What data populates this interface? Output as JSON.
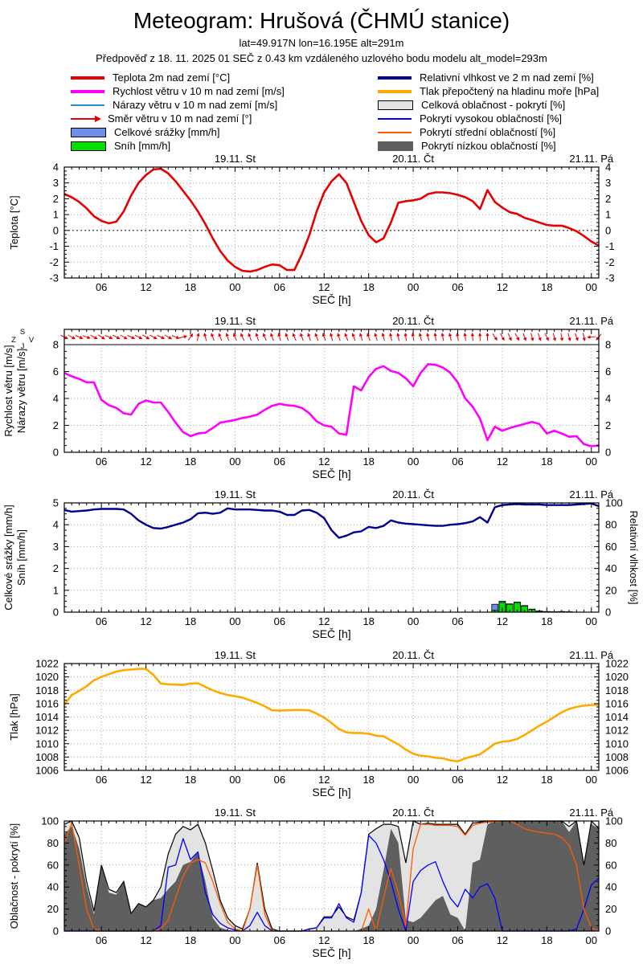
{
  "header": {
    "title": "Meteogram: Hrušová (ČHMÚ stanice)",
    "subtitle": "lat=49.917N lon=16.195E alt=291m",
    "forecast_info": "Předpověď z 18. 11. 2025 01 SEČ z 0.43 km vzdáleného uzlového bodu modelu alt_model=293m"
  },
  "legend": {
    "left": [
      {
        "label": "Teplota 2m nad zemí [°C]",
        "color": "#e60000",
        "type": "line-thick"
      },
      {
        "label": "Rychlost větru v 10 m nad zemí [m/s]",
        "color": "#ff00ff",
        "type": "line-thick"
      },
      {
        "label": "Nárazy větru v 10 m nad zemí [m/s]",
        "color": "#2090d0",
        "type": "line-thin"
      },
      {
        "label": "Směr větru v 10 m nad zemí [°]",
        "color": "#e60000",
        "type": "arrow"
      },
      {
        "label": "Celkové srážky [mm/h]",
        "color": "#6d8fe8",
        "type": "box"
      },
      {
        "label": "Sníh [mm/h]",
        "color": "#00e000",
        "type": "box"
      }
    ],
    "right": [
      {
        "label": "Relativní vlhkost ve 2 m nad zemí [%]",
        "color": "#000090",
        "type": "line-thick"
      },
      {
        "label": "Tlak přepočtený na hladinu moře [hPa]",
        "color": "#ffaa00",
        "type": "line-thick"
      },
      {
        "label": "Celková oblačnost - pokrytí [%]",
        "color": "#e3e3e3",
        "type": "box-outline"
      },
      {
        "label": "Pokrytí vysokou oblačností [%]",
        "color": "#0000ff",
        "type": "line-thin"
      },
      {
        "label": "Pokrytí střední oblačností [%]",
        "color": "#ff5a00",
        "type": "line-thin"
      },
      {
        "label": "Pokrytí nízkou oblačností [%]",
        "color": "#5f5f5f",
        "type": "box-filled"
      }
    ]
  },
  "axis": {
    "x_start": "18.11. 01:00 SEČ",
    "x_hours_span": 72,
    "x_major_hours": [
      5,
      11,
      17,
      23,
      29,
      35,
      41,
      47,
      53,
      59,
      65,
      71
    ],
    "x_tick_labels": [
      "06",
      "12",
      "18",
      "00",
      "06",
      "12",
      "18",
      "00",
      "06",
      "12",
      "18",
      "00"
    ],
    "x_label": "SEČ [h]",
    "day_labels": [
      {
        "text": "19.11. St",
        "hour": 23
      },
      {
        "text": "20.11. Čt",
        "hour": 47
      },
      {
        "text": "21.11. Pá",
        "hour": 71
      }
    ]
  },
  "chart_data": [
    {
      "type": "line",
      "name": "temperature",
      "ylabel": "Teplota [°C]",
      "ylim": [
        -3,
        4
      ],
      "ytick": 1,
      "yminor": 0.25,
      "zero_line": true,
      "series": [
        {
          "name": "Teplota 2m nad zemí [°C]",
          "color": "#e60000",
          "width": 2.6,
          "values": [
            2.3,
            2.1,
            1.8,
            1.4,
            0.9,
            0.6,
            0.45,
            0.55,
            1.2,
            2.2,
            3.0,
            3.5,
            3.85,
            3.9,
            3.6,
            3.1,
            2.5,
            1.9,
            1.2,
            0.4,
            -0.5,
            -1.3,
            -1.9,
            -2.3,
            -2.55,
            -2.6,
            -2.5,
            -2.3,
            -2.15,
            -2.2,
            -2.5,
            -2.5,
            -1.5,
            -0.3,
            1.2,
            2.4,
            3.1,
            3.55,
            3.0,
            1.8,
            0.6,
            -0.3,
            -0.75,
            -0.5,
            0.5,
            1.75,
            1.85,
            1.9,
            2.0,
            2.3,
            2.4,
            2.4,
            2.35,
            2.25,
            2.1,
            1.85,
            1.35,
            2.55,
            1.8,
            1.45,
            1.15,
            1.05,
            0.8,
            0.65,
            0.5,
            0.35,
            0.3,
            0.3,
            0.15,
            -0.05,
            -0.35,
            -0.7,
            -0.95
          ]
        }
      ]
    },
    {
      "type": "line",
      "name": "wind",
      "ylabel": [
        "Rychlost větru [m/s]",
        "Nárazy větru [m/s]"
      ],
      "ylim": [
        0,
        8
      ],
      "ytick": 2,
      "yminor": 0.5,
      "top_strip": true,
      "compass": {
        "north": "S",
        "east": "V",
        "south": "J",
        "west": "Z"
      },
      "arrows": {
        "name": "Směr větru v 10 m nad zemí [°]",
        "color": "#e60000",
        "angles_deg": [
          -25,
          -30,
          -25,
          -20,
          -28,
          -32,
          -25,
          -28,
          -30,
          -25,
          -28,
          -32,
          -28,
          -25,
          -30,
          -22,
          15,
          55,
          80,
          105,
          110,
          112,
          108,
          112,
          115,
          110,
          108,
          112,
          110,
          106,
          110,
          114,
          110,
          108,
          112,
          110,
          105,
          108,
          112,
          110,
          107,
          110,
          108,
          105,
          102,
          100,
          98,
          100,
          105,
          102,
          98,
          100,
          103,
          100,
          97,
          95,
          92,
          90,
          -55,
          -60,
          -65,
          -60,
          -70,
          -75,
          -70,
          -65,
          -75,
          -80,
          -75,
          -70,
          -78,
          185,
          -130
        ]
      },
      "series": [
        {
          "name": "Nárazy větru v 10 m nad zemí [m/s]",
          "color": "#2090d0",
          "width": 1,
          "values": "same_as_next"
        },
        {
          "name": "Rychlost větru v 10 m nad zemí [m/s]",
          "color": "#ff00ff",
          "width": 2.6,
          "values": [
            5.9,
            5.65,
            5.45,
            5.2,
            5.2,
            3.9,
            3.5,
            3.3,
            2.9,
            2.8,
            3.6,
            3.85,
            3.7,
            3.7,
            3.0,
            2.2,
            1.5,
            1.2,
            1.4,
            1.45,
            1.8,
            2.2,
            2.3,
            2.4,
            2.55,
            2.65,
            2.8,
            3.15,
            3.45,
            3.6,
            3.5,
            3.45,
            3.3,
            2.9,
            2.3,
            2.0,
            1.9,
            1.4,
            1.3,
            4.9,
            4.6,
            5.6,
            6.2,
            6.4,
            6.05,
            5.9,
            5.5,
            4.9,
            5.9,
            6.55,
            6.5,
            6.3,
            5.9,
            5.2,
            4.0,
            3.4,
            2.5,
            0.9,
            1.9,
            1.6,
            1.8,
            1.95,
            2.1,
            2.25,
            2.1,
            1.4,
            1.6,
            1.4,
            1.15,
            1.2,
            0.6,
            0.45,
            0.5
          ]
        }
      ]
    },
    {
      "type": "bars+line",
      "name": "precipitation-humidity",
      "ylabel": [
        "Celkové srážky [mm/h]",
        "Sníh [mm/h]"
      ],
      "ylim": [
        0,
        5
      ],
      "ytick": 1,
      "yminor": 0.25,
      "y2label": "Relativní vlhkost [%]",
      "y2lim": [
        0,
        100
      ],
      "y2tick": 20,
      "bars": {
        "total_name": "Celkové srážky [mm/h]",
        "total_color": "#6d8fe8",
        "snow_name": "Sníh [mm/h]",
        "snow_color": "#00e000",
        "values": [
          {
            "hour": 58,
            "total": 0.36,
            "snow": 0.08
          },
          {
            "hour": 59,
            "total": 0.5,
            "snow": 0.44
          },
          {
            "hour": 60,
            "total": 0.38,
            "snow": 0.36
          },
          {
            "hour": 61,
            "total": 0.46,
            "snow": 0.44
          },
          {
            "hour": 62,
            "total": 0.3,
            "snow": 0.28
          },
          {
            "hour": 63,
            "total": 0.14,
            "snow": 0.12
          },
          {
            "hour": 64,
            "total": 0.05,
            "snow": 0.04
          },
          {
            "hour": 65,
            "total": 0.03,
            "snow": 0.02
          },
          {
            "hour": 66,
            "total": 0.02,
            "snow": 0.02
          },
          {
            "hour": 67,
            "total": 0.03,
            "snow": 0.02
          },
          {
            "hour": 68,
            "total": 0.02,
            "snow": 0.01
          }
        ]
      },
      "series2": [
        {
          "name": "Relativní vlhkost ve 2 m nad zemí [%]",
          "color": "#000090",
          "width": 2.4,
          "values": [
            93.5,
            92,
            92.5,
            93,
            94,
            94.5,
            94.5,
            94.5,
            94,
            90,
            84,
            80,
            77,
            76.5,
            78,
            80,
            82,
            85,
            90.5,
            91,
            90,
            91,
            95,
            94,
            94,
            94,
            93.5,
            93,
            93,
            92,
            89,
            89,
            93,
            93.5,
            91,
            86,
            75,
            68,
            70,
            73,
            74,
            78,
            77,
            79,
            84,
            82,
            81,
            80.5,
            80,
            79.5,
            79,
            79,
            80,
            80.5,
            81.5,
            83,
            87,
            82,
            96,
            98,
            98.5,
            99,
            98.5,
            98.5,
            98.5,
            98,
            98,
            98,
            98,
            98.5,
            99,
            99.5,
            97
          ]
        }
      ]
    },
    {
      "type": "line",
      "name": "pressure",
      "ylabel": "Tlak [hPa]",
      "ylim": [
        1006,
        1022
      ],
      "ytick": 2,
      "yminor": 0.5,
      "series": [
        {
          "name": "Tlak přepočtený na hladinu moře [hPa]",
          "color": "#ffaa00",
          "width": 2.6,
          "values": [
            1015.8,
            1017.3,
            1017.9,
            1018.6,
            1019.5,
            1020.0,
            1020.4,
            1020.8,
            1021.0,
            1021.1,
            1021.2,
            1021.2,
            1020.3,
            1019.0,
            1018.9,
            1018.85,
            1018.8,
            1019.0,
            1019.05,
            1018.5,
            1018.0,
            1017.6,
            1017.3,
            1017.1,
            1016.9,
            1016.5,
            1016.1,
            1015.6,
            1015.0,
            1014.95,
            1015.0,
            1015.05,
            1015.05,
            1015.0,
            1014.5,
            1013.9,
            1013.1,
            1012.2,
            1011.7,
            1011.6,
            1011.6,
            1011.5,
            1011.2,
            1011.1,
            1010.5,
            1009.9,
            1009.1,
            1008.5,
            1008.2,
            1008.1,
            1007.9,
            1007.8,
            1007.5,
            1007.35,
            1007.8,
            1008.1,
            1008.4,
            1009.2,
            1010.0,
            1010.3,
            1010.4,
            1010.7,
            1011.3,
            1012.0,
            1012.7,
            1013.3,
            1014.0,
            1014.7,
            1015.2,
            1015.5,
            1015.7,
            1015.8,
            1015.8
          ]
        }
      ]
    },
    {
      "type": "area+line",
      "name": "cloud-cover",
      "ylabel": "Oblačnost - pokrytí [%]",
      "ylim": [
        0,
        100
      ],
      "ytick": 20,
      "yminor": 5,
      "areas": [
        {
          "name": "Celková oblačnost - pokrytí [%]",
          "fill": "#e3e3e3",
          "outline": "#000000",
          "values": [
            97,
            100,
            85,
            45,
            18,
            60,
            38,
            35,
            45,
            16,
            25,
            22,
            28,
            40,
            70,
            88,
            95,
            92,
            97,
            80,
            55,
            28,
            12,
            5,
            2,
            20,
            62,
            20,
            2,
            0,
            0,
            0,
            0,
            2,
            3,
            13,
            13,
            22,
            13,
            10,
            35,
            88,
            93,
            97,
            97,
            95,
            62,
            100,
            97,
            98,
            97,
            97,
            97,
            97,
            88,
            98,
            99,
            100,
            100,
            100,
            100,
            100,
            100,
            100,
            100,
            100,
            100,
            100,
            95,
            100,
            60,
            100,
            93
          ]
        },
        {
          "name": "Pokrytí nízkou oblačností [%]",
          "fill": "#5f5f5f",
          "values": [
            88,
            95,
            75,
            40,
            15,
            60,
            35,
            33,
            45,
            15,
            25,
            22,
            28,
            30,
            38,
            45,
            60,
            63,
            72,
            45,
            12,
            3,
            1,
            0,
            0,
            0,
            0,
            0,
            0,
            0,
            0,
            0,
            0,
            0,
            0,
            0,
            0,
            0,
            0,
            0,
            2,
            5,
            20,
            55,
            93,
            80,
            10,
            8,
            12,
            20,
            28,
            32,
            15,
            12,
            0,
            62,
            65,
            97,
            100,
            100,
            100,
            100,
            100,
            100,
            100,
            100,
            100,
            100,
            90,
            100,
            60,
            97,
            93
          ]
        }
      ],
      "series": [
        {
          "name": "Pokrytí vysokou oblačností [%]",
          "color": "#0000ff",
          "width": 1.3,
          "values": [
            0,
            0,
            0,
            0,
            0,
            0,
            0,
            0,
            0,
            0,
            0,
            0,
            0,
            5,
            58,
            60,
            84,
            65,
            72,
            35,
            15,
            7,
            3,
            1,
            0,
            5,
            17,
            5,
            0,
            0,
            0,
            0,
            0,
            2,
            3,
            12,
            12,
            25,
            12,
            8,
            35,
            87,
            80,
            65,
            45,
            20,
            0,
            45,
            55,
            60,
            63,
            45,
            30,
            22,
            38,
            30,
            40,
            43,
            30,
            0,
            0,
            0,
            0,
            0,
            0,
            0,
            0,
            0,
            0,
            2,
            20,
            42,
            48
          ]
        },
        {
          "name": "Pokrytí střední oblačností [%]",
          "color": "#ff5a00",
          "width": 1.3,
          "values": [
            80,
            98,
            60,
            20,
            2,
            0,
            0,
            0,
            0,
            0,
            0,
            0,
            0,
            2,
            10,
            30,
            50,
            62,
            65,
            62,
            45,
            25,
            8,
            2,
            0,
            20,
            60,
            15,
            0,
            0,
            0,
            0,
            0,
            0,
            0,
            0,
            0,
            0,
            0,
            0,
            0,
            20,
            0,
            30,
            57,
            35,
            5,
            75,
            97,
            97,
            96,
            96,
            96,
            95,
            87,
            96,
            98,
            99,
            99,
            100,
            100,
            97,
            93,
            91,
            90,
            89,
            88,
            85,
            78,
            60,
            20,
            3,
            0
          ]
        }
      ]
    }
  ]
}
